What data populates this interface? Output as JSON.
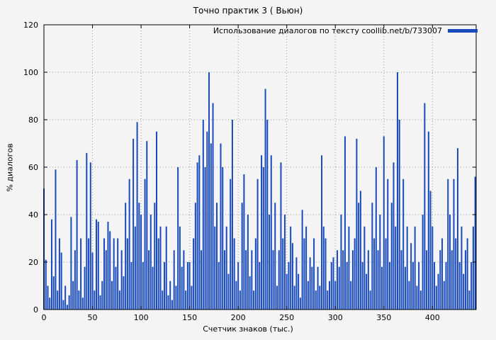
{
  "title": "Точно практик 3 ( Вьюн)",
  "colors": {
    "bar": "#1a4bbc",
    "background": "#f4f4f4",
    "grid": "#9a9a9a",
    "axis": "#000000"
  },
  "chart_data": {
    "type": "bar",
    "title": "Точно практик 3 ( Вьюн)",
    "legend": "Использование диалогов по тексту coollib.net/b/733007",
    "xlabel": "Счетчик знаков (тыс.)",
    "ylabel": "% диалогов",
    "xlim": [
      0,
      445
    ],
    "ylim": [
      0,
      120
    ],
    "x_ticks": [
      0,
      50,
      100,
      150,
      200,
      250,
      300,
      350,
      400
    ],
    "y_ticks": [
      0,
      20,
      40,
      60,
      80,
      100,
      120
    ],
    "grid": true,
    "legend_position": "top-right",
    "series": [
      {
        "name": "Использование диалогов по тексту coollib.net/b/733007",
        "x_start": 0,
        "x_step": 2,
        "values": [
          51,
          21,
          10,
          5,
          38,
          14,
          59,
          8,
          30,
          24,
          4,
          10,
          2,
          6,
          39,
          12,
          25,
          63,
          8,
          30,
          5,
          18,
          66,
          30,
          62,
          24,
          8,
          38,
          37,
          6,
          12,
          30,
          25,
          37,
          33,
          12,
          30,
          18,
          30,
          8,
          25,
          14,
          45,
          30,
          55,
          20,
          72,
          35,
          79,
          45,
          40,
          20,
          55,
          71,
          25,
          40,
          18,
          45,
          75,
          30,
          35,
          8,
          20,
          35,
          6,
          12,
          4,
          25,
          10,
          60,
          35,
          18,
          25,
          8,
          20,
          20,
          10,
          30,
          45,
          62,
          65,
          25,
          80,
          60,
          75,
          100,
          70,
          87,
          35,
          45,
          20,
          70,
          60,
          25,
          35,
          15,
          55,
          80,
          30,
          12,
          20,
          8,
          45,
          57,
          25,
          40,
          14,
          25,
          8,
          30,
          55,
          20,
          65,
          60,
          93,
          80,
          40,
          65,
          25,
          45,
          10,
          25,
          62,
          30,
          40,
          15,
          20,
          35,
          28,
          10,
          22,
          15,
          5,
          42,
          30,
          35,
          12,
          22,
          18,
          30,
          8,
          18,
          10,
          65,
          35,
          30,
          8,
          12,
          20,
          22,
          12,
          25,
          18,
          40,
          25,
          73,
          20,
          35,
          12,
          25,
          30,
          72,
          45,
          50,
          20,
          35,
          15,
          25,
          8,
          45,
          30,
          60,
          25,
          40,
          18,
          73,
          30,
          55,
          20,
          45,
          62,
          35,
          100,
          80,
          25,
          55,
          18,
          35,
          12,
          28,
          20,
          35,
          10,
          20,
          8,
          40,
          87,
          25,
          75,
          50,
          35,
          20,
          10,
          15,
          25,
          30,
          12,
          20,
          55,
          40,
          25,
          55,
          30,
          68,
          20,
          35,
          15,
          25,
          30,
          8,
          20,
          35,
          56
        ]
      }
    ]
  }
}
